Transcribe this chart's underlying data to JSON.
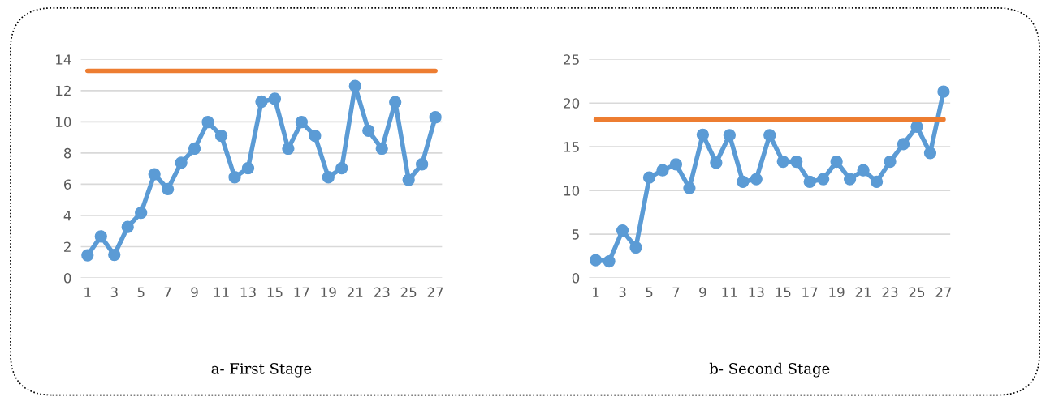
{
  "chart_data": [
    {
      "type": "line",
      "title": "a- First Stage",
      "categories": [
        "1",
        null,
        "3",
        null,
        "5",
        null,
        "7",
        null,
        "9",
        null,
        "11",
        null,
        "13",
        null,
        "15",
        null,
        "17",
        null,
        "19",
        null,
        "21",
        null,
        "23",
        null,
        "25",
        null,
        "27"
      ],
      "series": [
        {
          "color": "#5b9bd5",
          "marker": "circle",
          "values": [
            1.45,
            2.66,
            1.48,
            3.26,
            4.17,
            6.64,
            5.69,
            7.38,
            8.28,
            9.98,
            9.1,
            6.45,
            7.03,
            11.29,
            11.47,
            8.28,
            9.98,
            9.1,
            6.45,
            7.03,
            12.29,
            9.43,
            8.28,
            11.26,
            6.28,
            7.28,
            10.29
          ]
        },
        {
          "color": "#ed7d31",
          "marker": "none",
          "values": [
            13.26,
            13.26,
            13.26,
            13.26,
            13.26,
            13.26,
            13.26,
            13.26,
            13.26,
            13.26,
            13.26,
            13.26,
            13.26,
            13.26,
            13.26,
            13.26,
            13.26,
            13.26,
            13.26,
            13.26,
            13.26,
            13.26,
            13.26,
            13.26,
            13.26,
            13.26,
            13.26
          ]
        }
      ],
      "ylim": [
        0,
        14
      ],
      "yticks": [
        0,
        2,
        4,
        6,
        8,
        10,
        12,
        14
      ],
      "grid": "y",
      "legend": false
    },
    {
      "type": "line",
      "title": "b- Second Stage",
      "categories": [
        "1",
        null,
        "3",
        null,
        "5",
        null,
        "7",
        null,
        "9",
        null,
        "11",
        null,
        "13",
        null,
        "15",
        null,
        "17",
        null,
        "19",
        null,
        "21",
        null,
        "23",
        null,
        "25",
        null,
        "27"
      ],
      "series": [
        {
          "color": "#5b9bd5",
          "marker": "circle",
          "values": [
            2.03,
            1.9,
            5.42,
            3.48,
            11.48,
            12.31,
            12.99,
            10.28,
            16.38,
            13.18,
            16.32,
            10.99,
            11.3,
            16.32,
            13.3,
            13.3,
            10.99,
            11.3,
            13.3,
            11.3,
            12.31,
            10.99,
            13.3,
            15.3,
            17.3,
            14.29,
            21.3
          ]
        },
        {
          "color": "#ed7d31",
          "marker": "none",
          "values": [
            18.13,
            18.13,
            18.13,
            18.13,
            18.13,
            18.13,
            18.13,
            18.13,
            18.13,
            18.13,
            18.13,
            18.13,
            18.13,
            18.13,
            18.13,
            18.13,
            18.13,
            18.13,
            18.13,
            18.13,
            18.13,
            18.13,
            18.13,
            18.13,
            18.13,
            18.13,
            18.13
          ]
        }
      ],
      "ylim": [
        0,
        25
      ],
      "yticks": [
        0,
        5,
        10,
        15,
        20,
        25
      ],
      "grid": "y",
      "legend": false
    }
  ]
}
